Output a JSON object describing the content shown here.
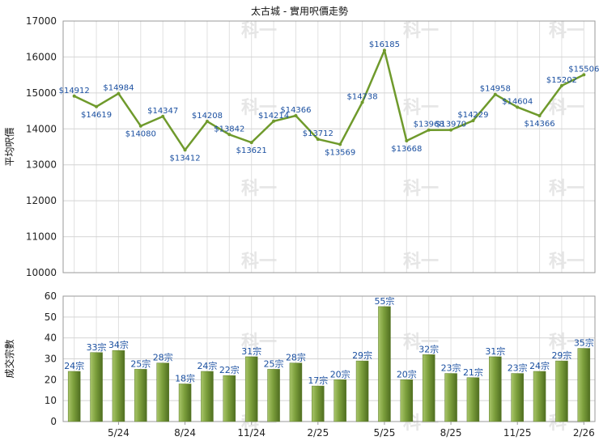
{
  "title": "太古城 - 實用呎價走勢",
  "chart_data": [
    {
      "type": "line",
      "ylabel": "平均呎價",
      "ylim": [
        10000,
        17000
      ],
      "yticks": [
        10000,
        11000,
        12000,
        13000,
        14000,
        15000,
        16000,
        17000
      ],
      "color": "#6f9a2c",
      "values": [
        14912,
        14619,
        14984,
        14080,
        14347,
        13412,
        14208,
        13842,
        13621,
        14214,
        14366,
        13712,
        13569,
        14738,
        16185,
        13668,
        13968,
        13970,
        14229,
        14958,
        14604,
        14366,
        15202,
        15506
      ],
      "labels": [
        "$14912",
        "$14619",
        "$14984",
        "$14080",
        "$14347",
        "$13412",
        "$14208",
        "$13842",
        "$13621",
        "$14214",
        "$14366",
        "$13712",
        "$13569",
        "$14738",
        "$16185",
        "$13668",
        "$13968",
        "$13970",
        "$14229",
        "$14958",
        "$14604",
        "$14366",
        "$15202",
        "$15506"
      ]
    },
    {
      "type": "bar",
      "ylabel": "成交宗數",
      "ylim": [
        0,
        60
      ],
      "yticks": [
        0,
        10,
        20,
        30,
        40,
        50,
        60
      ],
      "color": "#7c9f3c",
      "values": [
        24,
        33,
        34,
        25,
        28,
        18,
        24,
        22,
        31,
        25,
        28,
        17,
        20,
        29,
        55,
        20,
        32,
        23,
        21,
        31,
        23,
        24,
        29,
        35
      ],
      "labels": [
        "24宗",
        "33宗",
        "34宗",
        "25宗",
        "28宗",
        "18宗",
        "24宗",
        "22宗",
        "31宗",
        "25宗",
        "28宗",
        "17宗",
        "20宗",
        "29宗",
        "55宗",
        "20宗",
        "32宗",
        "23宗",
        "21宗",
        "31宗",
        "23宗",
        "24宗",
        "29宗",
        "35宗"
      ]
    }
  ],
  "x_ticks": [
    {
      "index": 2,
      "label": "5/24"
    },
    {
      "index": 5,
      "label": "8/24"
    },
    {
      "index": 8,
      "label": "11/24"
    },
    {
      "index": 11,
      "label": "2/25"
    },
    {
      "index": 14,
      "label": "5/25"
    },
    {
      "index": 17,
      "label": "8/25"
    },
    {
      "index": 20,
      "label": "11/25"
    },
    {
      "index": 23,
      "label": "2/26"
    }
  ],
  "watermark": "科一"
}
